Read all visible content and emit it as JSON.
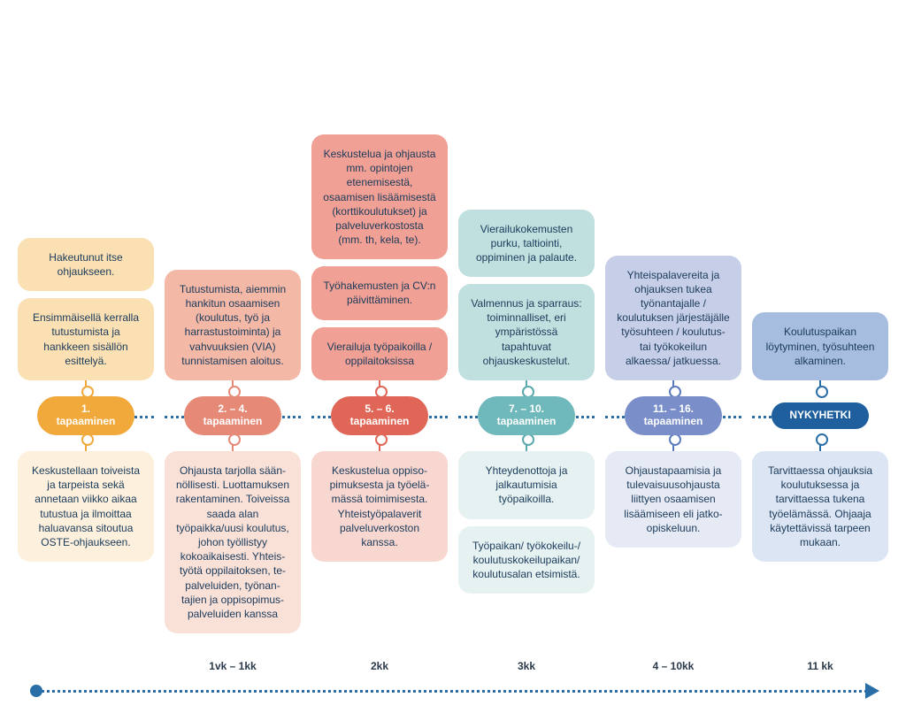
{
  "colors": {
    "timeline": "#2a6ea8"
  },
  "columns": [
    {
      "id": "c1",
      "accent": "#f2a93c",
      "card_bg": "#fbe0b4",
      "lower_bg": "#fdf1dd",
      "milestone_bg": "#f2a93c",
      "milestone_label": "1.\ntapaaminen",
      "upper_cards": [
        "Hakeutunut itse ohjaukseen.",
        "Ensimmäisellä kerralla tutustumista ja hankkeen sisällön esittelyä."
      ],
      "lower_cards": [
        "Keskustellaan toiveista ja tarpeista sekä annetaan viikko aikaa tutustua ja ilmoittaa haluavansa sitoutua OSTE-ohjaukseen."
      ],
      "time_label": ""
    },
    {
      "id": "c2",
      "accent": "#e68a77",
      "card_bg": "#f4b8a6",
      "lower_bg": "#fae1d8",
      "milestone_bg": "#e68a77",
      "milestone_label": "2. – 4.\ntapaaminen",
      "upper_cards": [
        "Tutustumista, aiemmin hankitun osaamisen (koulutus, työ ja harrastustoiminta) ja vahvuuksien (VIA) tunnistamisen aloitus."
      ],
      "lower_cards": [
        "Ohjausta tarjolla sään­nöllisesti. Luottamuk­sen rakentaminen. Toiveissa saada alan työpaikka/uusi kou­lutus, johon työllistyy kokoaikaisesti. Yhteis­työtä oppilaitoksen, te-palveluiden, työnan­tajien ja oppisopimus­palveluiden kanssa"
      ],
      "time_label": "1vk – 1kk"
    },
    {
      "id": "c3",
      "accent": "#e06757",
      "card_bg": "#f0a094",
      "lower_bg": "#f8d7d0",
      "milestone_bg": "#e06757",
      "milestone_label": "5. – 6.\ntapaaminen",
      "upper_cards": [
        "Keskustelua ja ohjausta mm. opintojen etenemisestä, osaamisen lisäämisestä (korttikoulutukset) ja palveluverkostosta (mm. th, kela, te).",
        "Työhakemusten ja CV:n päivittäminen.",
        "Vierailuja työpaikoilla / oppilaitoksissa"
      ],
      "lower_cards": [
        "Keskustelua oppiso­pimuksesta ja työelä­mässä toimimisesta. Yhteistyöpalaverit palveluverkoston kanssa."
      ],
      "time_label": "2kk"
    },
    {
      "id": "c4",
      "accent": "#5aa9ad",
      "card_bg": "#bfe0df",
      "lower_bg": "#e6f2f1",
      "milestone_bg": "#6fb8bb",
      "milestone_label": "7. – 10.\ntapaaminen",
      "upper_cards": [
        "Vierailukokemusten purku, taltiointi, oppiminen ja palaute.",
        "Valmennus ja sparraus: toiminnalliset, eri ympäristössä tapahtuvat ohjauskeskustelut."
      ],
      "lower_cards": [
        "Yhteydenottoja ja jalkautumisia työpaikoilla.",
        "Työpaikan/ työkokeilu-/ koulutuskokeilupaikan/ koulutusalan etsimistä."
      ],
      "time_label": "3kk"
    },
    {
      "id": "c5",
      "accent": "#5a7bbd",
      "card_bg": "#c7cfe8",
      "lower_bg": "#e6eaf5",
      "milestone_bg": "#7a8fc9",
      "milestone_label": "11. – 16.\ntapaaminen",
      "upper_cards": [
        "Yhteispalavereita ja ohjauksen tukea työnantajalle / koulutuksen järjestäjälle työsuhteen / koulutus- tai työkokeilun alkaessa/ jatkuessa."
      ],
      "lower_cards": [
        "Ohjaustapaamisia ja tulevaisuusohjausta liittyen osaamisen lisäämiseen eli jatko-opiskeluun."
      ],
      "time_label": "4 – 10kk"
    },
    {
      "id": "c6",
      "accent": "#2a6ea8",
      "card_bg": "#a7bde0",
      "lower_bg": "#dbe5f3",
      "milestone_bg": "#1f5f9e",
      "milestone_label": "NYKYHETKI",
      "upper_cards": [
        "Koulutuspaikan löytyminen, työsuhteen alkaminen."
      ],
      "lower_cards": [
        "Tarvittaessa ohjauksia koulutuksessa ja tarvittaessa tukena työelämässä. Ohjaaja käytettävissä tarpeen mukaan."
      ],
      "time_label": "11 kk"
    }
  ]
}
